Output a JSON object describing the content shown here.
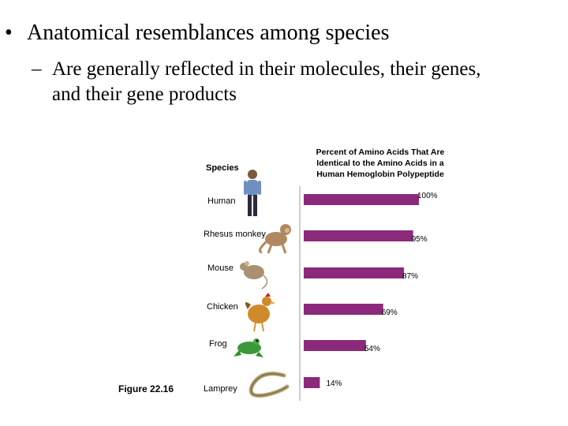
{
  "slide": {
    "bullet1_marker": "•",
    "bullet1": "Anatomical resemblances among species",
    "bullet2_marker": "–",
    "bullet2_line1": "Are generally reflected in their molecules, their genes,",
    "bullet2_line2": "and their gene products"
  },
  "figure_label": "Figure 22.16",
  "chart_data": {
    "type": "bar",
    "orientation": "horizontal",
    "category_header": "Species",
    "title": "Percent of Amino Acids That Are Identical to the Amino Acids in a Human Hemoglobin Polypeptide",
    "categories": [
      "Human",
      "Rhesus monkey",
      "Mouse",
      "Chicken",
      "Frog",
      "Lamprey"
    ],
    "values": [
      100,
      95,
      87,
      69,
      54,
      14
    ],
    "value_labels": [
      "100%",
      "95%",
      "87%",
      "69%",
      "54%",
      "14%"
    ],
    "xlim": [
      0,
      100
    ],
    "bar_color": "#8b2a7a",
    "grid": false,
    "legend": "none"
  },
  "icons": [
    "human-figure-icon",
    "monkey-icon",
    "mouse-icon",
    "chicken-icon",
    "frog-icon",
    "lamprey-icon"
  ]
}
